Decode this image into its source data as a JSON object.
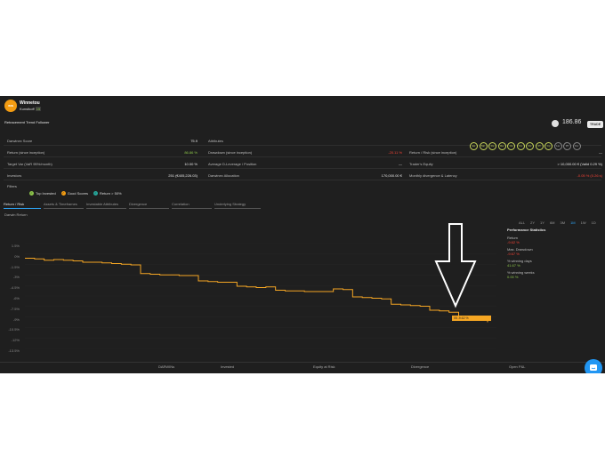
{
  "header": {
    "avatar_text": "WIN",
    "name": "Winnetou",
    "username": "Kunstkoff",
    "username_badge": "15",
    "strategy": "Retracement Trend Follower",
    "score": "186.86",
    "trade_label": "TRADE"
  },
  "metrics": {
    "left": [
      {
        "label": "Darwinex Score",
        "value": "75.9",
        "color": "#e6e6e6"
      },
      {
        "label": "Return (since inception)",
        "value": "86.86 %",
        "color": "#8bc34a"
      },
      {
        "label": "Target Var (VaR 95%/month)",
        "value": "10.00 %",
        "color": "#e6e6e6"
      },
      {
        "label": "Investors",
        "value": "251 (€405,226.03)",
        "color": "#e6e6e6"
      }
    ],
    "mid": [
      {
        "label": "Attributes",
        "value": "",
        "color": "#e6e6e6"
      },
      {
        "label": "Drawdown (since inception)",
        "value": "-20.11 %",
        "color": "#f44336"
      },
      {
        "label": "Average D-Leverage / Position",
        "value": "—",
        "color": "#e6e6e6"
      },
      {
        "label": "Darwinex Allocation",
        "value": "170,000.00 €",
        "color": "#e6e6e6"
      }
    ],
    "right": [
      {
        "label": "",
        "value": "",
        "color": "#e6e6e6"
      },
      {
        "label": "Return / Risk (since inception)",
        "value": "—",
        "color": "#e6e6e6"
      },
      {
        "label": "Trader's Equity",
        "value": "> 10,000.00 € (Valid 0.29 %)",
        "color": "#e6e6e6"
      },
      {
        "label": "Monthly divergence & Latency",
        "value": "-0.05 % (0.26 s)",
        "color": "#f44336"
      }
    ]
  },
  "attribute_badges": [
    "Ex",
    "Mc",
    "Rs",
    "Ra",
    "Os",
    "Cs",
    "Dc",
    "Pf",
    "Cp",
    "La",
    "Pf",
    "Cs"
  ],
  "filters": {
    "label": "Filters",
    "items": [
      {
        "label": "Top Invested",
        "color": "#8bc34a"
      },
      {
        "label": "Good Scores",
        "color": "#f39c12"
      },
      {
        "label": "Return > 50%",
        "color": "#26a69a"
      }
    ]
  },
  "tabs": [
    "Return / Risk",
    "Assets & Timeframes",
    "Investable Attributes",
    "Divergence",
    "Correlation",
    "Underlying Strategy"
  ],
  "chart_title": "Darwin Return",
  "ranges": [
    "ALL",
    "2Y",
    "1Y",
    "6M",
    "3M",
    "1M",
    "1W",
    "1D"
  ],
  "active_range": "1M",
  "yticks": [
    "1.5%",
    "0%",
    "-1.5%",
    "-3%",
    "-4.5%",
    "-6%",
    "-7.5%",
    "-9%",
    "-10.5%",
    "-12%",
    "-13.5%"
  ],
  "end_label": "05 -9.62 %",
  "chart_data": {
    "type": "line",
    "xlabel": "",
    "ylabel": "",
    "ylim": [
      -15,
      3
    ],
    "series": [
      {
        "color": "#f5a623",
        "values": [
          0,
          -0.1,
          -0.3,
          -0.2,
          -0.3,
          -0.4,
          -0.6,
          -0.6,
          -0.7,
          -0.8,
          -0.9,
          -1.0,
          -2.3,
          -2.4,
          -2.5,
          -2.5,
          -2.6,
          -2.6,
          -3.4,
          -3.5,
          -3.6,
          -3.6,
          -4.2,
          -4.3,
          -4.4,
          -4.3,
          -4.8,
          -4.9,
          -4.9,
          -5.0,
          -5.0,
          -5.0,
          -4.6,
          -4.7,
          -5.8,
          -5.9,
          -6.0,
          -6.1,
          -6.9,
          -7.0,
          -7.1,
          -7.2,
          -7.8,
          -7.9,
          -8.1,
          -9.0,
          -9.2,
          -9.3,
          -9.6
        ]
      }
    ]
  },
  "performance": {
    "title": "Performance Statistics",
    "items": [
      {
        "label": "Return",
        "value": "-9.62 %",
        "color": "#f44336"
      },
      {
        "label": "Max. Drawdown",
        "value": "-9.67 %",
        "color": "#f44336"
      },
      {
        "label": "% winning days",
        "value": "41.67 %",
        "color": "#8bc34a"
      },
      {
        "label": "% winning weeks",
        "value": "0.00 %",
        "color": "#8bc34a"
      }
    ]
  },
  "footer": [
    "DARWINs",
    "Invested",
    "Equity at Risk",
    "Divergence",
    "Open P&L"
  ]
}
